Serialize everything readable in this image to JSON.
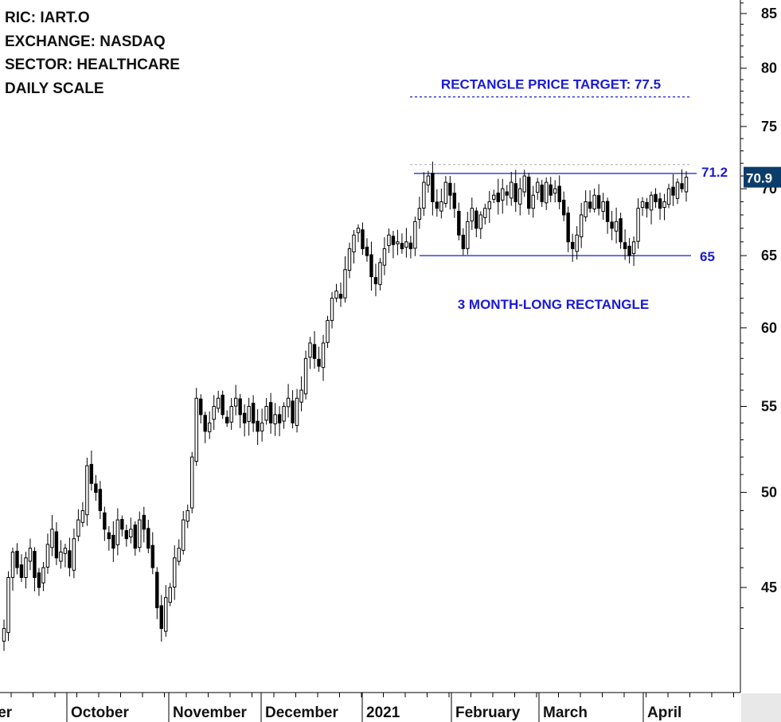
{
  "header": {
    "ric": "RIC: IART.O",
    "exchange": "EXCHANGE: NASDAQ",
    "sector": "SECTOR: HEALTHCARE",
    "scale": "DAILY SCALE"
  },
  "colors": {
    "annotation": "#1a1ad6",
    "candle_up": "#ffffff",
    "candle_down": "#000000",
    "last_price_bg": "#0b3d6b",
    "axis": "#000000"
  },
  "chart_data": {
    "type": "candlestick",
    "scale": "log",
    "ylim": [
      40.5,
      87
    ],
    "y_ticks": [
      45,
      50,
      55,
      60,
      65,
      70,
      75,
      80,
      85
    ],
    "last_price": "70.9",
    "months": [
      "September",
      "October",
      "November",
      "December",
      "2021",
      "February",
      "March",
      "April"
    ],
    "annotations": {
      "target_label": "RECTANGLE PRICE TARGET: 77.5",
      "target_value": 77.5,
      "resistance_value": 71.2,
      "resistance_label": "71.2",
      "support_value": 65,
      "support_label": "65",
      "pattern_label": "3 MONTH-LONG RECTANGLE"
    },
    "closes": [
      43.0,
      45.5,
      46.8,
      46.0,
      45.5,
      46.5,
      47.0,
      45.5,
      45.0,
      46.0,
      47.2,
      48.0,
      46.5,
      46.8,
      47.0,
      46.0,
      47.5,
      48.5,
      49.0,
      51.5,
      50.5,
      50.0,
      49.0,
      48.0,
      47.5,
      47.0,
      48.5,
      48.0,
      47.5,
      48.0,
      47.0,
      48.5,
      48.0,
      47.0,
      46.0,
      44.0,
      43.0,
      44.5,
      45.0,
      46.5,
      47.0,
      48.5,
      49.0,
      52.0,
      55.5,
      54.5,
      53.5,
      54.0,
      55.0,
      55.5,
      54.5,
      54.0,
      55.0,
      55.5,
      54.5,
      54.0,
      55.0,
      54.0,
      53.5,
      54.0,
      55.0,
      54.0,
      54.5,
      54.0,
      55.0,
      55.5,
      54.0,
      55.5,
      56.0,
      58.0,
      59.0,
      58.0,
      57.5,
      59.0,
      60.5,
      62.0,
      62.5,
      62.0,
      64.0,
      65.5,
      66.5,
      67.0,
      65.5,
      65.0,
      63.5,
      63.0,
      64.5,
      65.5,
      66.5,
      65.8,
      66.0,
      65.5,
      66.0,
      65.5,
      67.5,
      68.5,
      70.5,
      71.0,
      69.0,
      68.5,
      69.0,
      70.5,
      69.5,
      68.5,
      66.5,
      65.5,
      67.5,
      68.5,
      67.0,
      68.0,
      68.5,
      69.0,
      69.5,
      69.0,
      70.0,
      69.5,
      70.5,
      69.0,
      70.0,
      71.0,
      68.5,
      69.5,
      70.5,
      69.0,
      70.5,
      69.5,
      70.0,
      69.0,
      68.0,
      66.0,
      65.5,
      66.5,
      68.0,
      69.0,
      68.5,
      69.5,
      68.5,
      69.0,
      67.5,
      67.0,
      67.5,
      66.0,
      65.5,
      65.0,
      66.0,
      68.5,
      69.0,
      68.5,
      69.5,
      69.0,
      68.5,
      69.0,
      70.0,
      69.5,
      70.5,
      70.0,
      70.9
    ]
  }
}
